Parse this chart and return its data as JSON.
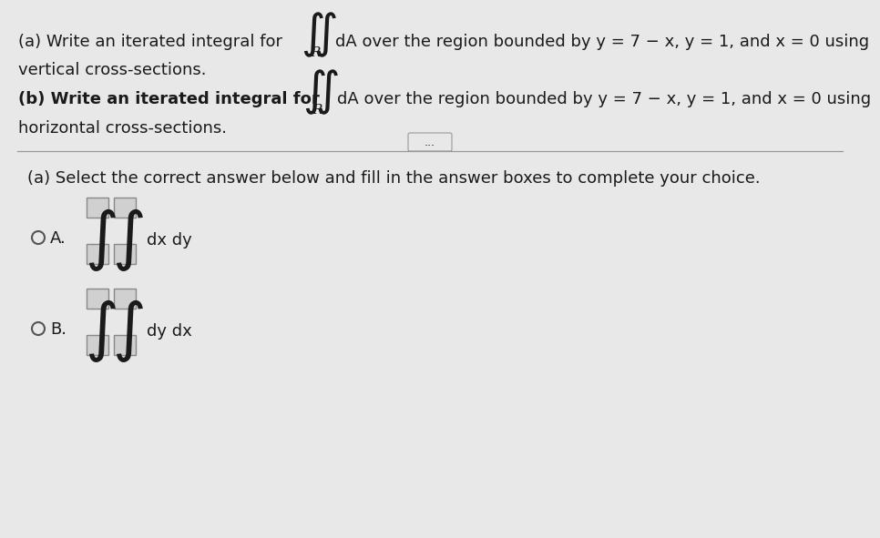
{
  "bg_color": "#e8e8e8",
  "text_color": "#1a1a1a",
  "line_color": "#999999",
  "box_color": "#d0d0d0",
  "box_edge": "#888888",
  "title_a": "(a) Write an iterated integral for",
  "dA_text_a": "dA over the region bounded by y = 7 − x, y = 1, and x = 0 using",
  "R_label": "R",
  "vertical_text": "vertical cross-sections.",
  "title_b": "(b) Write an iterated integral for",
  "dA_text_b": "dA over the region bounded by y = 7 − x, y = 1, and x = 0 using",
  "horizontal_text": "horizontal cross-sections.",
  "dots_label": "...",
  "select_text": "(a) Select the correct answer below and fill in the answer boxes to complete your choice.",
  "option_A_integral": "dx dy",
  "option_B_integral": "dy dx",
  "font_size_main": 13.0,
  "font_size_b": 13.0,
  "font_size_integral_large": 36,
  "font_size_integral_top": 22
}
